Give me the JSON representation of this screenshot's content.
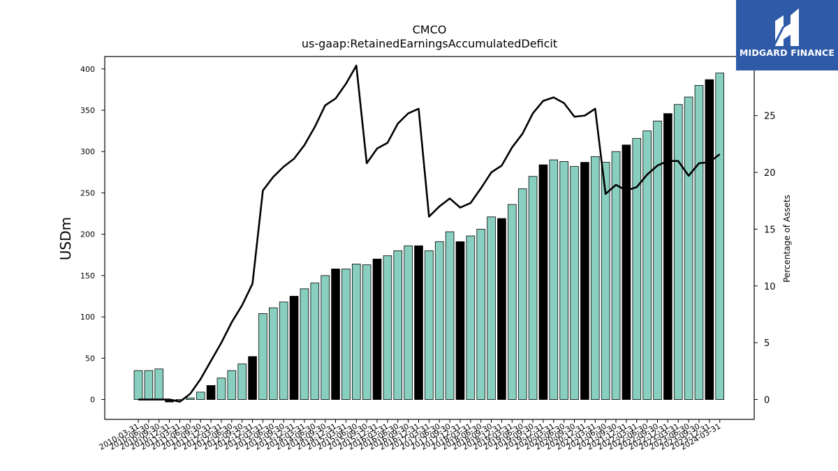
{
  "brand": {
    "name": "MIDGARD FINANCE",
    "bg_color": "#2f5aa8"
  },
  "chart_data": {
    "type": "bar",
    "title": "CMCO",
    "subtitle": "us-gaap:RetainedEarningsAccumulatedDeficit",
    "ylabel": "USDm",
    "y2label": "Percentage of Assets",
    "ylim": [
      -24,
      415
    ],
    "y2lim": [
      -1.75,
      30.2
    ],
    "yticks": [
      0,
      50,
      100,
      150,
      200,
      250,
      300,
      350,
      400
    ],
    "y2ticks": [
      0,
      5,
      10,
      15,
      20,
      25
    ],
    "y2ticks_visible_labels": [
      "0",
      "5",
      "10",
      "15",
      "20",
      "25",
      "30"
    ],
    "bar_color": "#88cfc0",
    "highlight_color": "#000000",
    "line_color": "#000000",
    "categories": [
      "2010-03-31",
      "2010-06-30",
      "2010-09-30",
      "2010-12-31",
      "2011-03-31",
      "2011-06-30",
      "2011-09-30",
      "2011-12-31",
      "2012-03-31",
      "2012-06-30",
      "2012-09-30",
      "2012-12-31",
      "2013-03-31",
      "2013-06-30",
      "2013-09-30",
      "2013-12-31",
      "2014-03-31",
      "2014-06-30",
      "2014-09-30",
      "2014-12-31",
      "2015-03-31",
      "2015-06-30",
      "2015-09-30",
      "2015-12-31",
      "2016-03-31",
      "2016-06-30",
      "2016-09-30",
      "2016-12-31",
      "2017-03-31",
      "2017-06-30",
      "2017-09-30",
      "2017-12-31",
      "2018-03-31",
      "2018-06-30",
      "2018-09-30",
      "2018-12-31",
      "2019-03-31",
      "2019-06-30",
      "2019-09-30",
      "2019-12-31",
      "2020-03-31",
      "2020-06-30",
      "2020-09-30",
      "2020-12-31",
      "2021-03-31",
      "2021-06-30",
      "2021-09-30",
      "2021-12-31",
      "2022-03-31",
      "2022-06-30",
      "2022-09-30",
      "2022-12-31",
      "2023-03-31",
      "2023-06-30",
      "2023-09-30",
      "2023-12-31",
      "2024-03-31"
    ],
    "series": [
      {
        "values": [
          35,
          35,
          37,
          -3,
          0,
          2,
          9,
          17,
          26,
          35,
          43,
          52,
          104,
          111,
          118,
          125,
          134,
          141,
          150,
          158,
          158,
          164,
          163,
          170,
          174,
          180,
          186,
          186,
          180,
          191,
          203,
          191,
          198,
          206,
          221,
          219,
          236,
          255,
          270,
          284,
          290,
          288,
          282,
          287,
          294,
          287,
          300,
          308,
          316,
          325,
          337,
          346,
          357,
          366,
          380,
          387,
          395
        ],
        "highlight": [
          false,
          false,
          false,
          true,
          false,
          false,
          false,
          true,
          false,
          false,
          false,
          true,
          false,
          false,
          false,
          true,
          false,
          false,
          false,
          true,
          false,
          false,
          false,
          true,
          false,
          false,
          false,
          true,
          false,
          false,
          false,
          true,
          false,
          false,
          false,
          true,
          false,
          false,
          false,
          true,
          false,
          false,
          false,
          true,
          false,
          false,
          false,
          true,
          false,
          false,
          false,
          true,
          false,
          false,
          false,
          true,
          false
        ]
      },
      {
        "axis": "right",
        "values": [
          0,
          0,
          0,
          0,
          -0.2,
          0.5,
          1.8,
          3.4,
          5.0,
          6.8,
          8.3,
          10.2,
          18.4,
          19.6,
          20.5,
          21.2,
          22.4,
          24.0,
          25.9,
          26.5,
          27.8,
          29.4,
          20.8,
          22.1,
          22.6,
          24.3,
          25.2,
          25.6,
          16.1,
          17.0,
          17.7,
          16.9,
          17.3,
          18.6,
          20.0,
          20.6,
          22.2,
          23.4,
          25.2,
          26.3,
          26.6,
          26.1,
          24.9,
          25.0,
          25.6,
          18.1,
          18.9,
          18.4,
          18.7,
          19.8,
          20.6,
          21.0,
          21.0,
          19.7,
          20.8,
          20.9,
          21.6
        ]
      }
    ]
  }
}
